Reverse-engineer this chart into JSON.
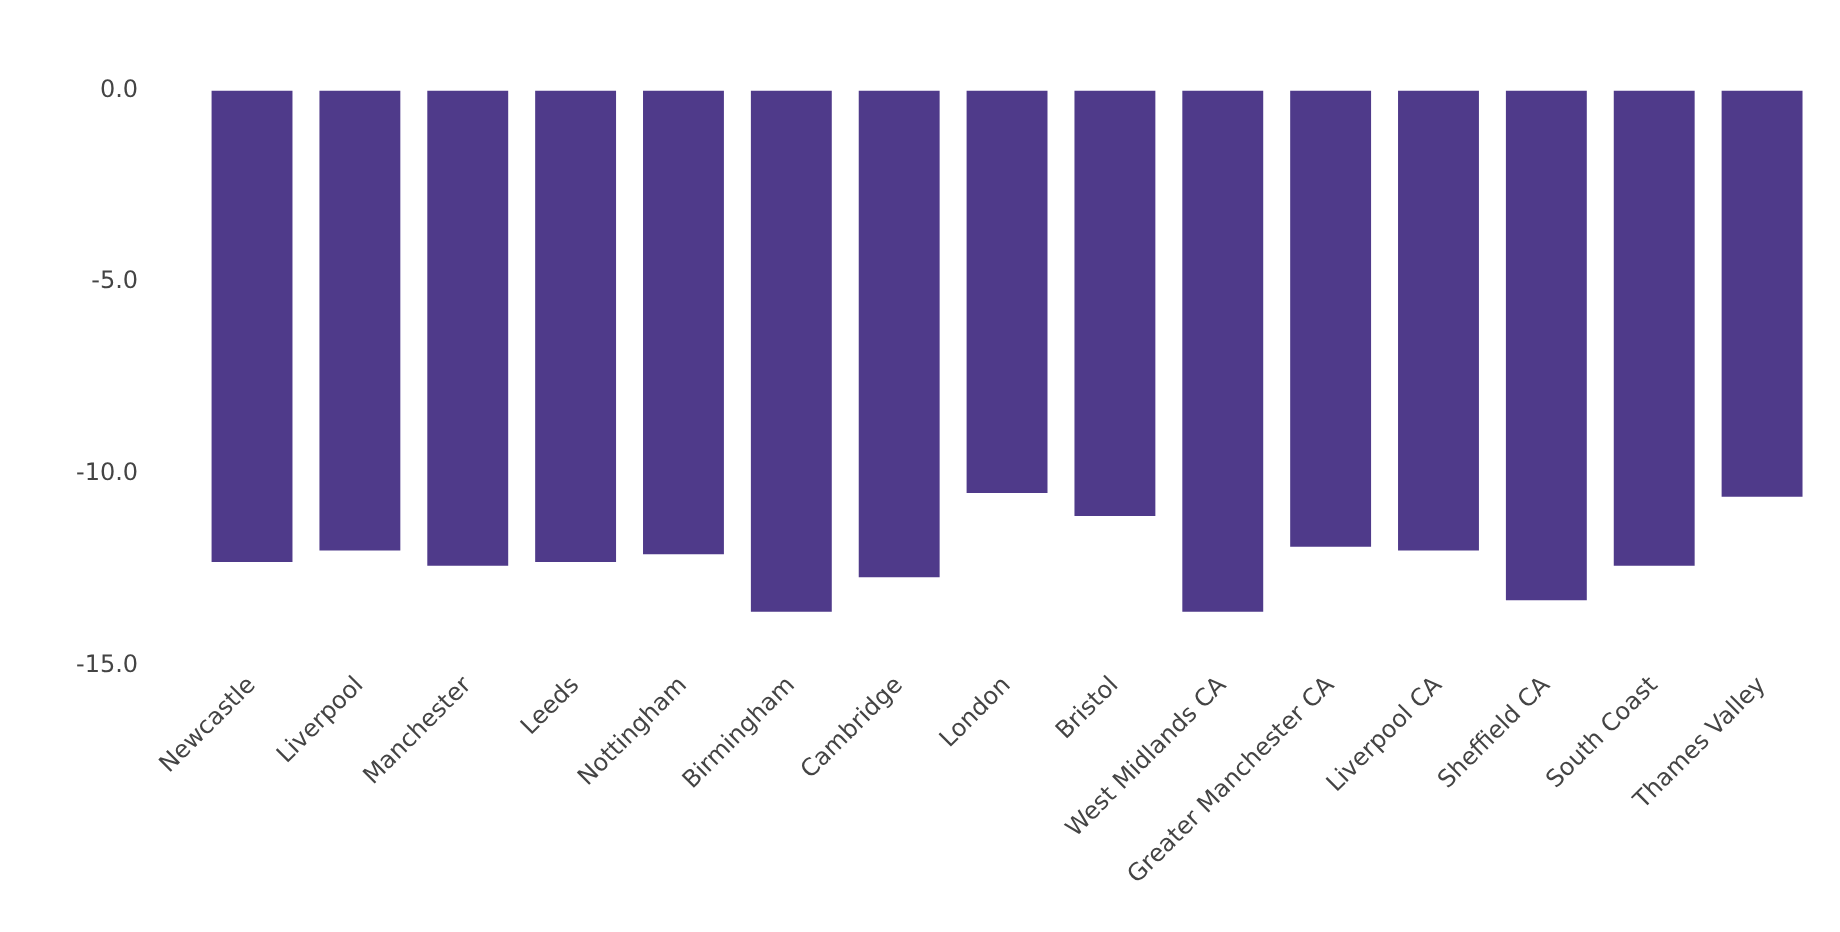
{
  "chart_data": {
    "type": "bar",
    "categories": [
      "Newcastle",
      "Liverpool",
      "Manchester",
      "Leeds",
      "Nottingham",
      "Birmingham",
      "Cambridge",
      "London",
      "Bristol",
      "West Midlands CA",
      "Greater Manchester CA",
      "Liverpool CA",
      "Sheffield CA",
      "South Coast",
      "Thames Valley"
    ],
    "values": [
      -12.3,
      -12.0,
      -12.4,
      -12.3,
      -12.1,
      -13.6,
      -12.7,
      -10.5,
      -11.1,
      -13.6,
      -11.9,
      -12.0,
      -13.3,
      -12.4,
      -10.6
    ],
    "color": "#4f3a8a",
    "ylim": [
      -15,
      0
    ],
    "yticks": [
      {
        "value": 0,
        "label": "0.0"
      },
      {
        "value": -5,
        "label": "-5.0"
      },
      {
        "value": -10,
        "label": "-10.0"
      },
      {
        "value": -15,
        "label": "-15.0"
      }
    ],
    "grid": false,
    "legend": false
  }
}
